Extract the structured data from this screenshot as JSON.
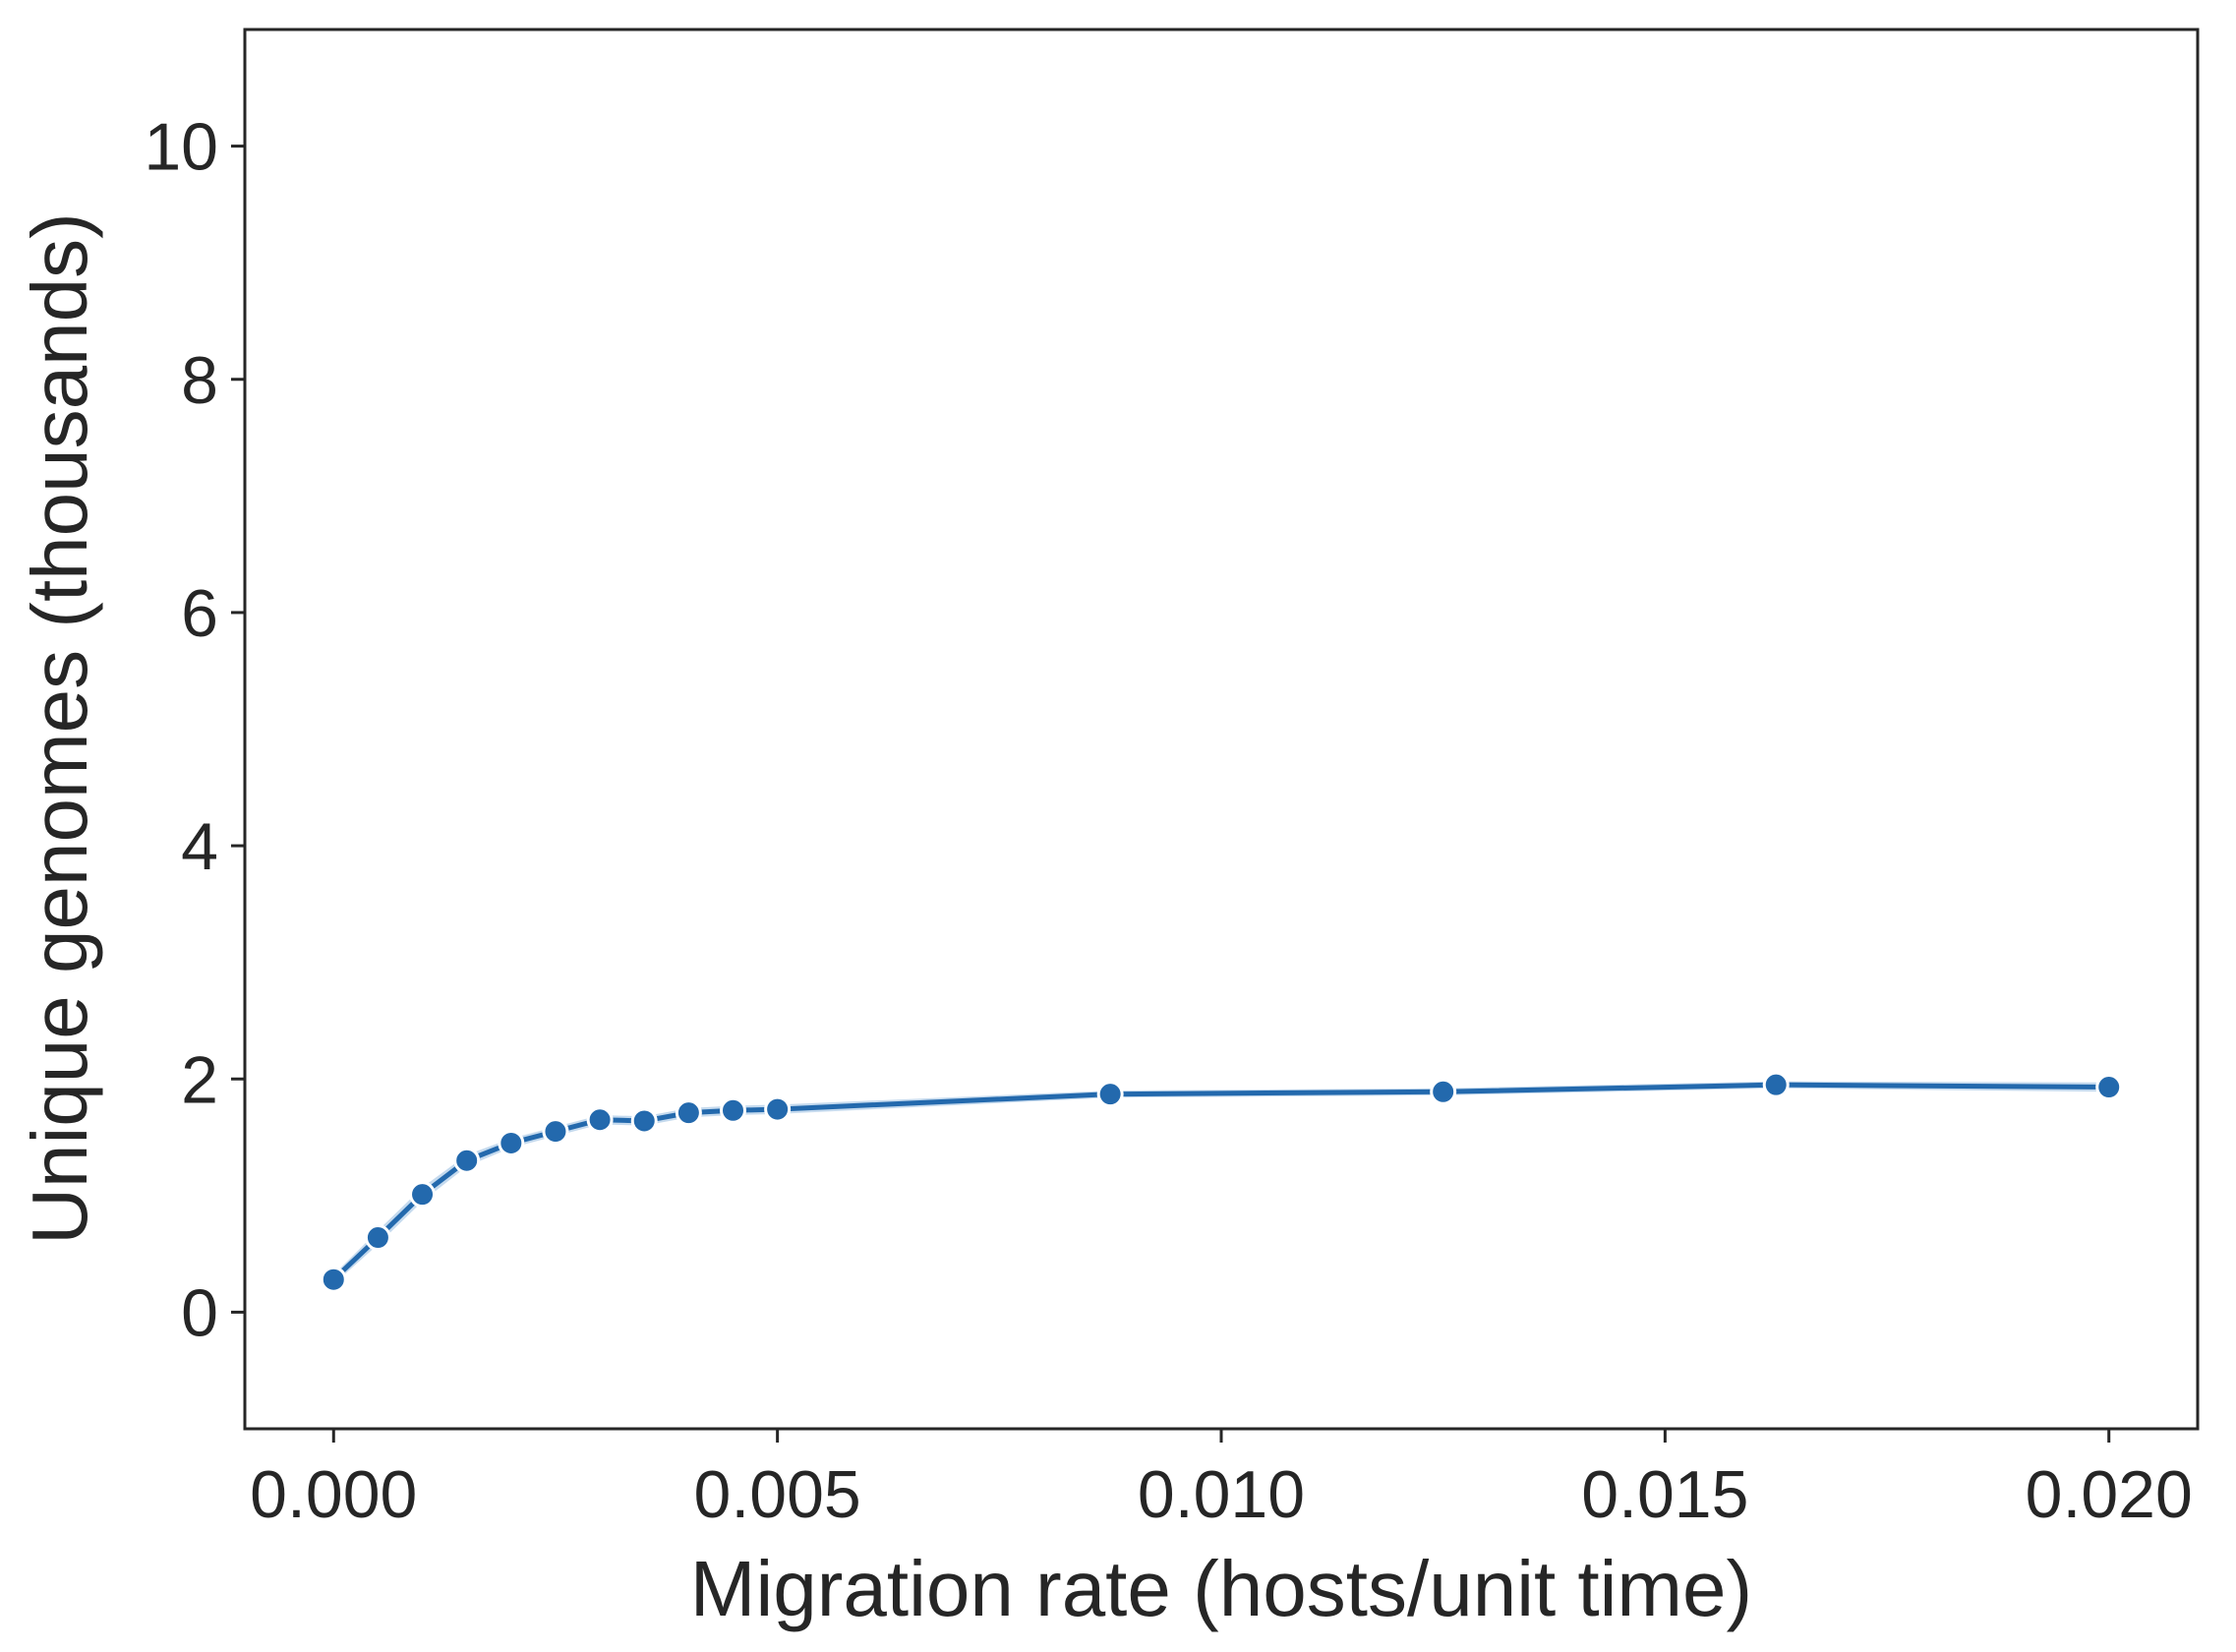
{
  "chart_data": {
    "type": "line",
    "title": "",
    "xlabel": "Migration rate (hosts/unit time)",
    "ylabel": "Unique genomes (thousands)",
    "xlim": [
      -0.001,
      0.021
    ],
    "ylim": [
      -1,
      11
    ],
    "xticks": [
      0.0,
      0.005,
      0.01,
      0.015,
      0.02
    ],
    "xtick_labels": [
      "0.000",
      "0.005",
      "0.010",
      "0.015",
      "0.020"
    ],
    "yticks": [
      0,
      2,
      4,
      6,
      8,
      10
    ],
    "ytick_labels": [
      "0",
      "2",
      "4",
      "6",
      "8",
      "10"
    ],
    "grid": false,
    "legend": "none",
    "color": "#2369ad",
    "band_color": "#9ec1e3",
    "series": [
      {
        "x": [
          0.0,
          0.0005,
          0.001,
          0.0015,
          0.002,
          0.0025,
          0.003,
          0.0035,
          0.004,
          0.0045,
          0.005,
          0.00875,
          0.0125,
          0.01625,
          0.02
        ],
        "values": [
          0.28,
          0.64,
          1.01,
          1.3,
          1.45,
          1.55,
          1.65,
          1.64,
          1.71,
          1.73,
          1.74,
          1.87,
          1.89,
          1.95,
          1.93
        ],
        "lower": [
          0.24,
          0.58,
          0.95,
          1.25,
          1.41,
          1.51,
          1.61,
          1.6,
          1.67,
          1.69,
          1.7,
          1.84,
          1.86,
          1.92,
          1.89
        ],
        "upper": [
          0.32,
          0.7,
          1.07,
          1.35,
          1.49,
          1.59,
          1.69,
          1.68,
          1.75,
          1.77,
          1.78,
          1.9,
          1.92,
          1.98,
          1.97
        ]
      }
    ]
  }
}
